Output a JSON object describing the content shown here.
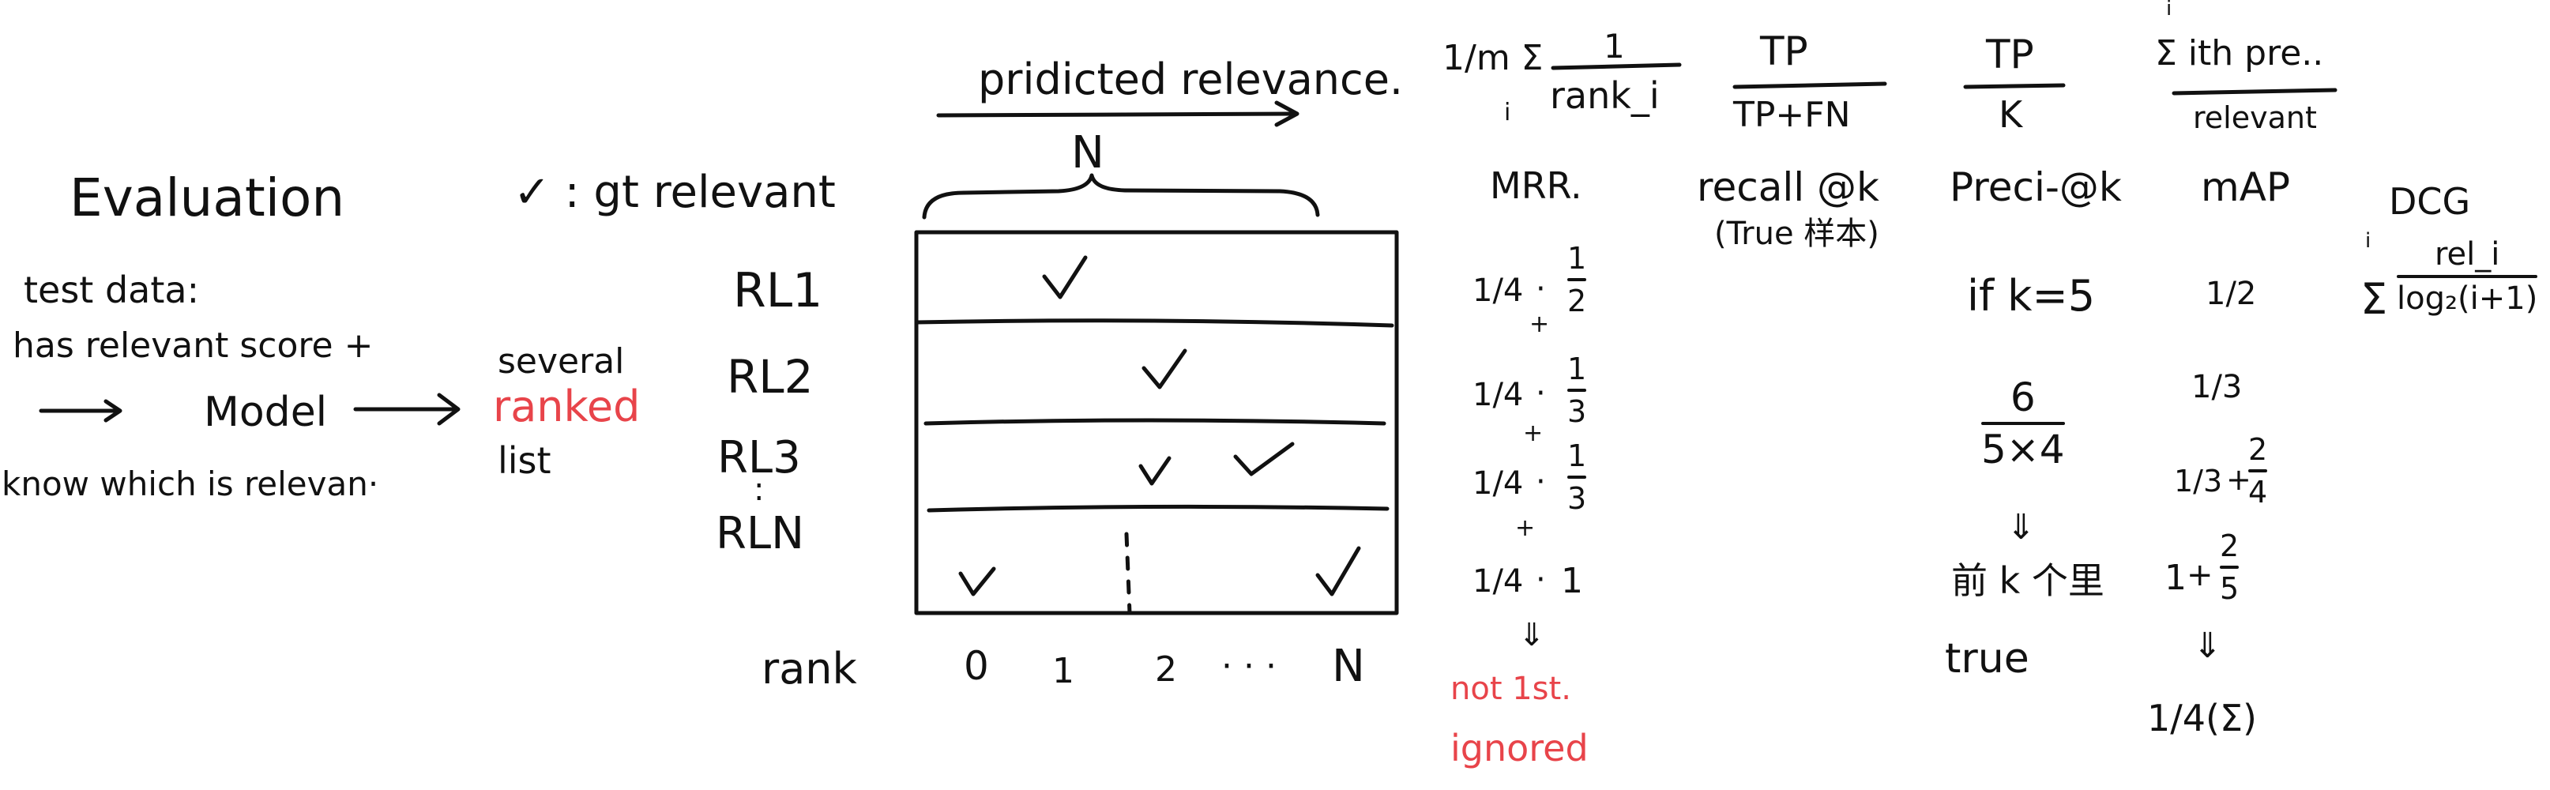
{
  "colors": {
    "ink": "#111111",
    "accent_red": "#e8444a"
  },
  "left": {
    "title": "Evaluation",
    "test_data": "test data:",
    "has_score": "has relevant score +",
    "arrow_model": "Model",
    "know_relevant": "know which is relevan·",
    "several": "several",
    "ranked": "ranked",
    "list": "list"
  },
  "grid": {
    "predicted_label": "pridicted relevance.",
    "n_label": "N",
    "legend": "✓ : gt relevant",
    "rows": [
      "RL1",
      "RL2",
      "RL3",
      ":",
      "RLN"
    ],
    "rank_label": "rank",
    "rank_values": [
      "0",
      "1",
      "2",
      "· · ·",
      "N"
    ],
    "check_icon": "checkmark"
  },
  "mrr": {
    "formula_prefix": "1/m Σ",
    "formula_sum_index": "i",
    "formula_num": "1",
    "formula_den": "rank_i",
    "label": "MRR.",
    "terms": [
      {
        "a": "1/4",
        "b_num": "1",
        "b_den": "2"
      },
      {
        "a": "1/4",
        "b_num": "1",
        "b_den": "3"
      },
      {
        "a": "1/4",
        "b_num": "1",
        "b_den": "3"
      },
      {
        "a": "1/4",
        "b": "1"
      }
    ],
    "plus": "+",
    "arrow_down": "⇓",
    "note_line1": "not 1st.",
    "note_line2": "ignored"
  },
  "recall": {
    "num": "TP",
    "den": "TP+FN",
    "label": "recall @k",
    "sub": "(True 样本)"
  },
  "precision": {
    "num": "TP",
    "den": "K",
    "label": "Preci-@k",
    "if_k": "if k=5",
    "frac_num": "6",
    "frac_den": "5×4",
    "arrow_down": "⇓",
    "top_k": "前 k 个里",
    "true": "true"
  },
  "map": {
    "formula_top": "i",
    "formula_num": "Σ ith pre..",
    "formula_den": "relevant",
    "label": "mAP",
    "v1": "1/2",
    "v2": "1/3",
    "v3_a": "1/3",
    "v3_b_num": "2",
    "v3_b_den": "4",
    "v4_a": "1",
    "v4_b_num": "2",
    "v4_b_den": "5",
    "arrow_down": "⇓",
    "final": "1/4(Σ)"
  },
  "dcg": {
    "label": "DCG",
    "sum_top": "i",
    "sigma": "Σ",
    "num": "rel_i",
    "den": "log₂(i+1)"
  }
}
